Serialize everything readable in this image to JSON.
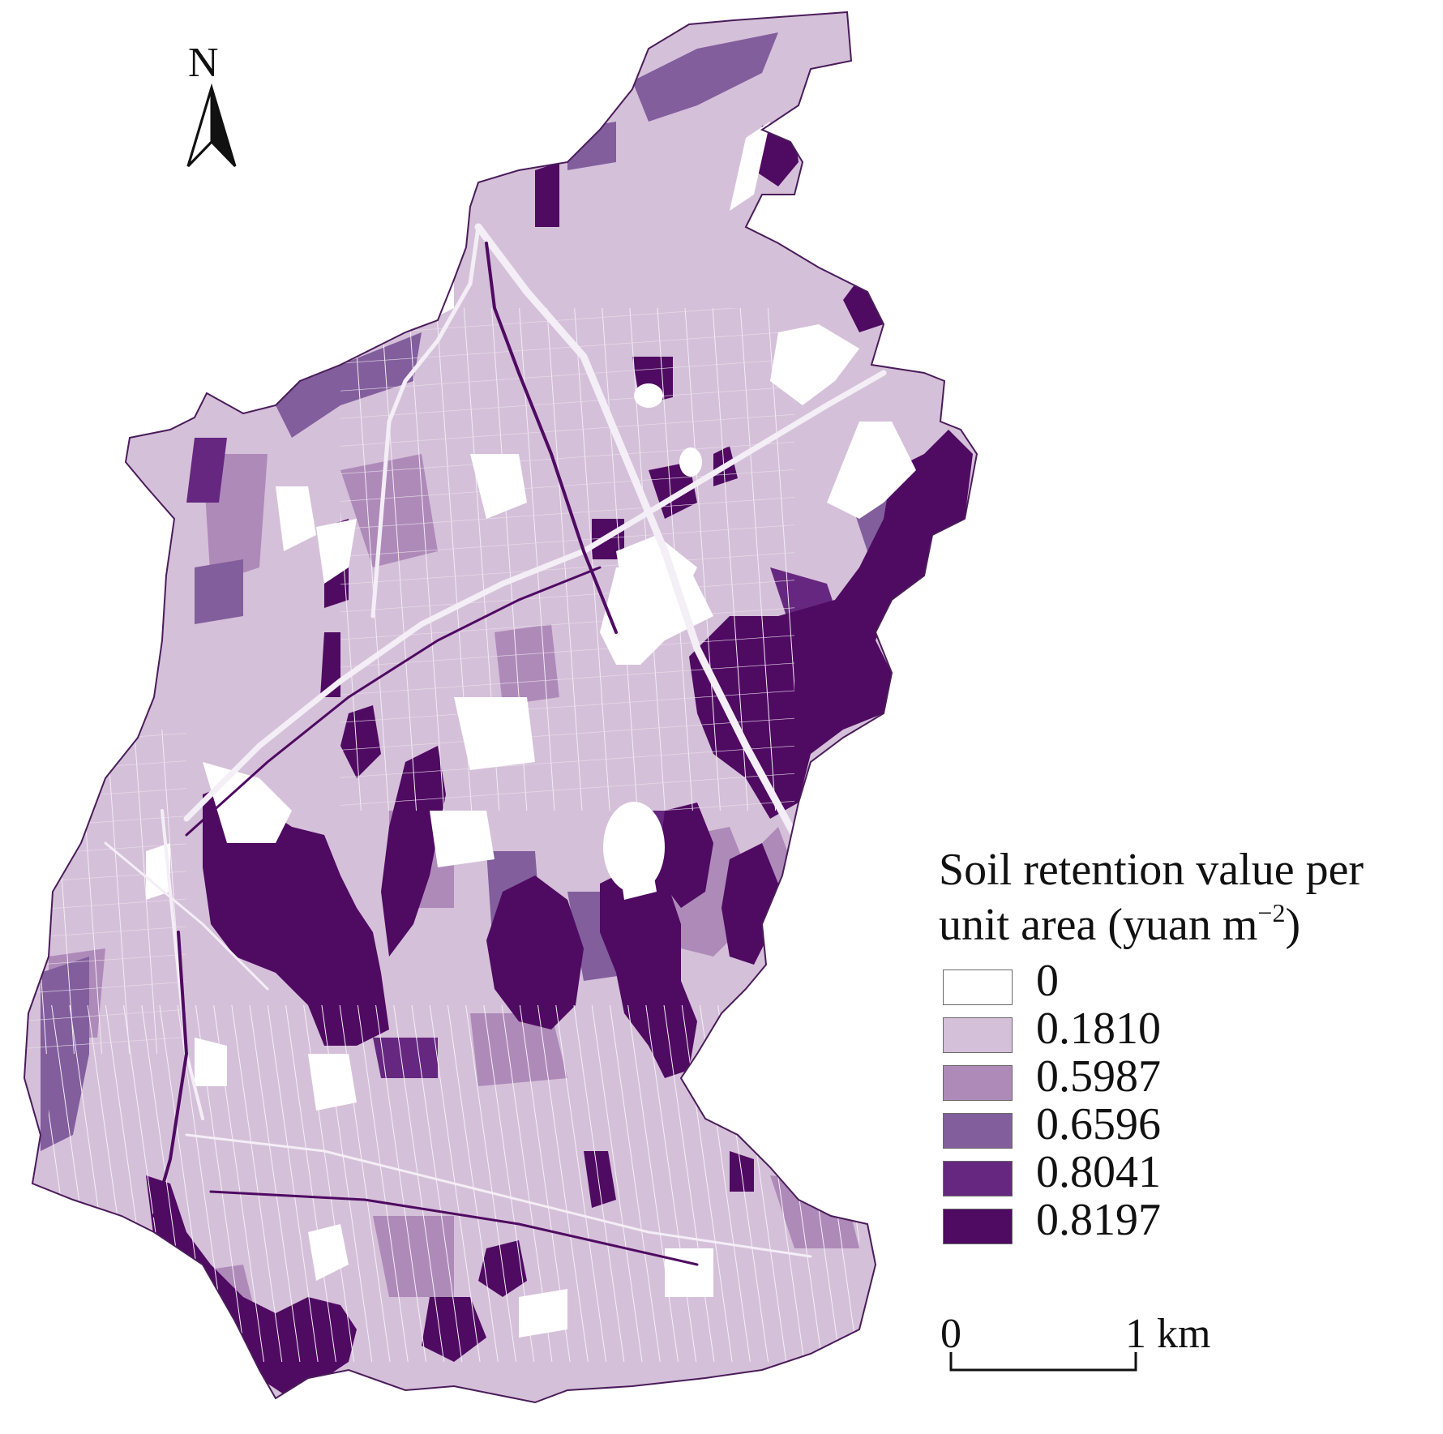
{
  "north_arrow": {
    "letter": "N"
  },
  "legend": {
    "title_line1": "Soil retention value per",
    "title_line2_prefix": "unit area (yuan m",
    "title_line2_sup": "−2",
    "title_line2_suffix": ")",
    "classes": [
      {
        "label": "0",
        "color": "#ffffff"
      },
      {
        "label": "0.1810",
        "color": "#d5c0d9"
      },
      {
        "label": "0.5987",
        "color": "#ae8ab9"
      },
      {
        "label": "0.6596",
        "color": "#825e9d"
      },
      {
        "label": "0.8041",
        "color": "#662780"
      },
      {
        "label": "0.8197",
        "color": "#4f0a62"
      }
    ]
  },
  "scale_bar": {
    "start_label": "0",
    "end_label": "1 km"
  },
  "colors": {
    "road": "#f4eef6",
    "road_dark": "#4f0a62",
    "boundary": "#4a1c5a"
  }
}
